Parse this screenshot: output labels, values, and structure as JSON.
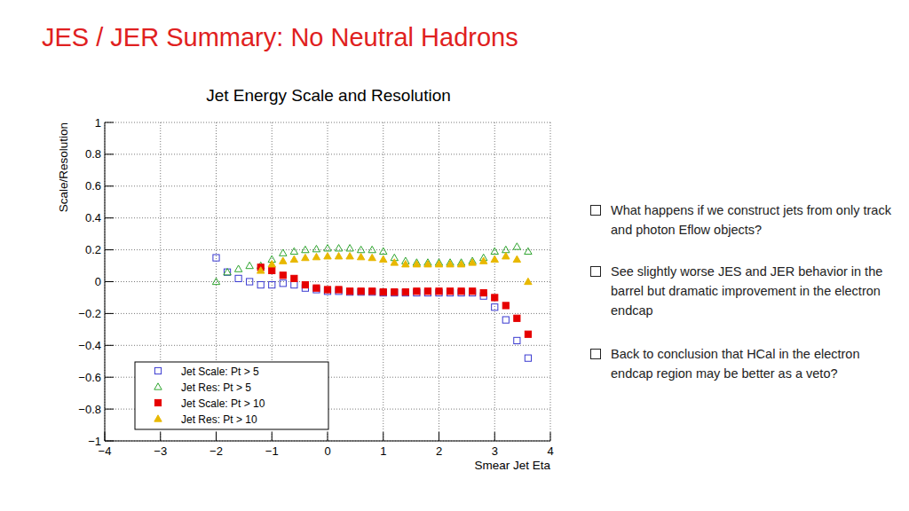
{
  "slide_title": "JES / JER Summary: No Neutral Hadrons",
  "bullets": [
    "What happens if we construct jets from only track and photon Eflow objects?",
    "See slightly worse JES and JER behavior in the barrel but dramatic improvement in the electron endcap",
    "Back to conclusion that HCal in the electron endcap region may be better as a veto?"
  ],
  "chart_data": {
    "type": "scatter",
    "title": "Jet Energy Scale and Resolution",
    "x_label": "Smear Jet Eta",
    "y_label": "Scale/Resolution",
    "x": [
      -2.0,
      -1.8,
      -1.6,
      -1.4,
      -1.2,
      -1.0,
      -0.8,
      -0.6,
      -0.4,
      -0.2,
      0.0,
      0.2,
      0.4,
      0.6,
      0.8,
      1.0,
      1.2,
      1.4,
      1.6,
      1.8,
      2.0,
      2.2,
      2.4,
      2.6,
      2.8,
      3.0,
      3.2,
      3.4,
      3.6
    ],
    "series": [
      {
        "name": "Jet Scale: Pt > 5",
        "color": "#3a3ad0",
        "marker": "open_square",
        "values": [
          0.15,
          0.06,
          0.02,
          0.0,
          -0.02,
          -0.02,
          -0.01,
          -0.02,
          -0.04,
          -0.05,
          -0.06,
          -0.06,
          -0.065,
          -0.065,
          -0.065,
          -0.07,
          -0.07,
          -0.07,
          -0.07,
          -0.07,
          -0.07,
          -0.07,
          -0.07,
          -0.07,
          -0.09,
          -0.16,
          -0.24,
          -0.37,
          -0.48
        ]
      },
      {
        "name": "Jet Res: Pt > 5",
        "color": "#2fa52f",
        "marker": "open_triangle",
        "values": [
          0.0,
          0.06,
          0.08,
          0.1,
          0.1,
          0.14,
          0.18,
          0.19,
          0.2,
          0.205,
          0.21,
          0.21,
          0.21,
          0.2,
          0.2,
          0.19,
          0.15,
          0.13,
          0.12,
          0.12,
          0.12,
          0.12,
          0.12,
          0.13,
          0.15,
          0.19,
          0.2,
          0.22,
          0.19
        ]
      },
      {
        "name": "Jet Scale: Pt > 10",
        "color": "#e60000",
        "marker": "square",
        "values": [
          null,
          null,
          null,
          null,
          0.09,
          0.07,
          0.04,
          0.02,
          -0.02,
          -0.04,
          -0.05,
          -0.05,
          -0.06,
          -0.06,
          -0.06,
          -0.065,
          -0.065,
          -0.065,
          -0.06,
          -0.06,
          -0.06,
          -0.06,
          -0.06,
          -0.06,
          -0.07,
          -0.1,
          -0.15,
          -0.23,
          -0.33
        ]
      },
      {
        "name": "Jet Res: Pt > 10",
        "color": "#e8b800",
        "marker": "triangle",
        "values": [
          null,
          null,
          null,
          null,
          0.07,
          0.11,
          0.13,
          0.14,
          0.15,
          0.155,
          0.16,
          0.16,
          0.16,
          0.155,
          0.15,
          0.14,
          0.12,
          0.11,
          0.11,
          0.11,
          0.11,
          0.11,
          0.11,
          0.12,
          0.13,
          0.14,
          0.16,
          0.14,
          0.0
        ]
      }
    ],
    "xlim": [
      -4,
      4
    ],
    "xticks": [
      {
        "value": -4,
        "label": "−4"
      },
      {
        "value": -3,
        "label": "−3"
      },
      {
        "value": -2,
        "label": "−2"
      },
      {
        "value": -1,
        "label": "−1"
      },
      0,
      1,
      2,
      3,
      4
    ],
    "ylim": [
      -1,
      1
    ],
    "yticks": [
      {
        "value": -1,
        "label": "−1"
      },
      {
        "value": -0.8,
        "label": "−0.8"
      },
      {
        "value": -0.6,
        "label": "−0.6"
      },
      {
        "value": -0.4,
        "label": "−0.4"
      },
      {
        "value": -0.2,
        "label": "−0.2"
      },
      0,
      0.2,
      0.4,
      0.6,
      0.8,
      1
    ],
    "grid": true,
    "legend": "bottom-left"
  }
}
